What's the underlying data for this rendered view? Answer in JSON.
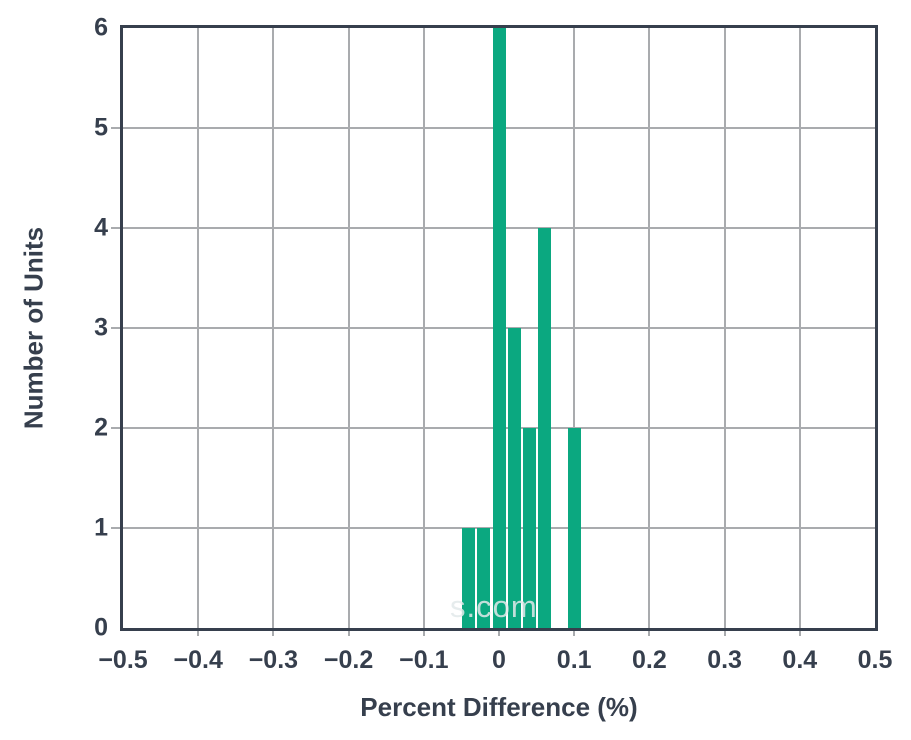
{
  "chart_data": {
    "type": "bar",
    "subtype": "histogram",
    "x": [
      -0.04,
      -0.02,
      0.0,
      0.02,
      0.04,
      0.06,
      0.08,
      0.1
    ],
    "values": [
      1,
      1,
      6,
      3,
      2,
      4,
      0,
      2
    ],
    "bin_width": 0.02,
    "title": "",
    "xlabel": "Percent Difference (%)",
    "ylabel": "Number of Units",
    "xlim": [
      -0.5,
      0.5
    ],
    "ylim": [
      0,
      6
    ],
    "x_tick_values": [
      -0.5,
      -0.4,
      -0.3,
      -0.2,
      -0.1,
      0.0,
      0.1,
      0.2,
      0.3,
      0.4,
      0.5
    ],
    "x_tick_labels": [
      "−0.5",
      "−0.4",
      "−0.3",
      "−0.2",
      "−0.1",
      "0",
      "0.1",
      "0.2",
      "0.3",
      "0.4",
      "0.5"
    ],
    "y_tick_values": [
      0,
      1,
      2,
      3,
      4,
      5,
      6
    ],
    "y_tick_labels": [
      "0",
      "1",
      "2",
      "3",
      "4",
      "5",
      "6"
    ],
    "grid": true,
    "legend": false,
    "watermark": "s.com",
    "colors": {
      "bar": "#0ba880",
      "axis_frame": "#363f4d",
      "gridline": "#a9abae",
      "label_text": "#363f4d"
    }
  }
}
